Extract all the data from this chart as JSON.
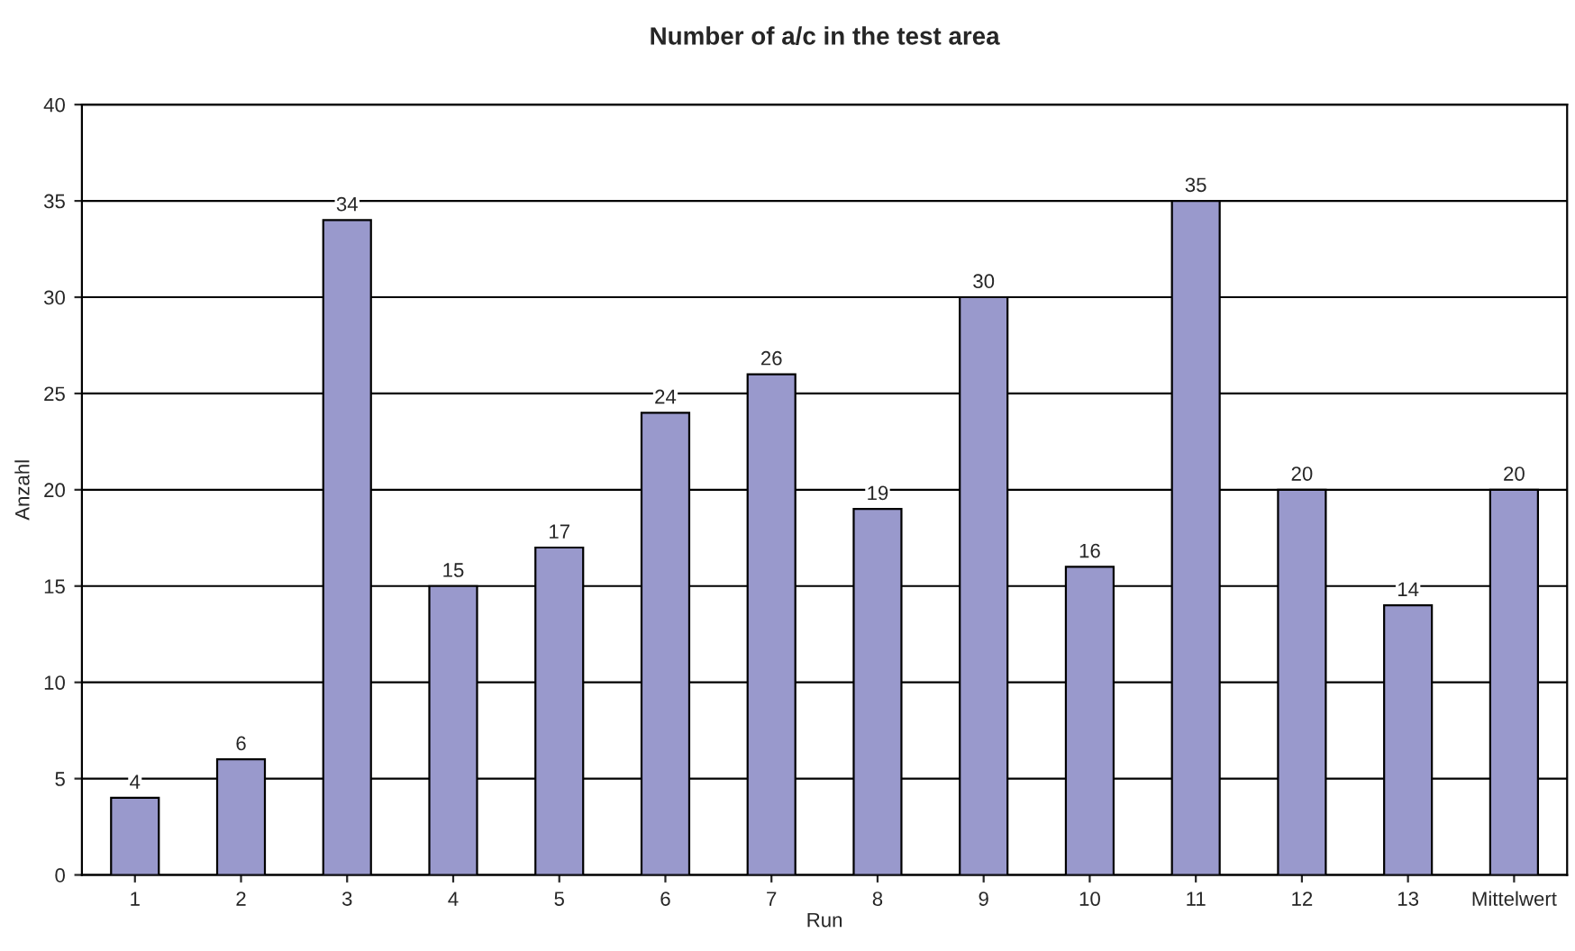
{
  "chart_data": {
    "type": "bar",
    "title": "Number of a/c in the test area",
    "xlabel": "Run",
    "ylabel": "Anzahl",
    "categories": [
      "1",
      "2",
      "3",
      "4",
      "5",
      "6",
      "7",
      "8",
      "9",
      "10",
      "11",
      "12",
      "13",
      "Mittelwert"
    ],
    "values": [
      4,
      6,
      34,
      15,
      17,
      24,
      26,
      19,
      30,
      16,
      35,
      20,
      14,
      20
    ],
    "color": "#9999cc",
    "ylim": [
      0,
      40
    ],
    "yticks": [
      0,
      5,
      10,
      15,
      20,
      25,
      30,
      35,
      40
    ],
    "grid": "y",
    "data_labels": true
  }
}
